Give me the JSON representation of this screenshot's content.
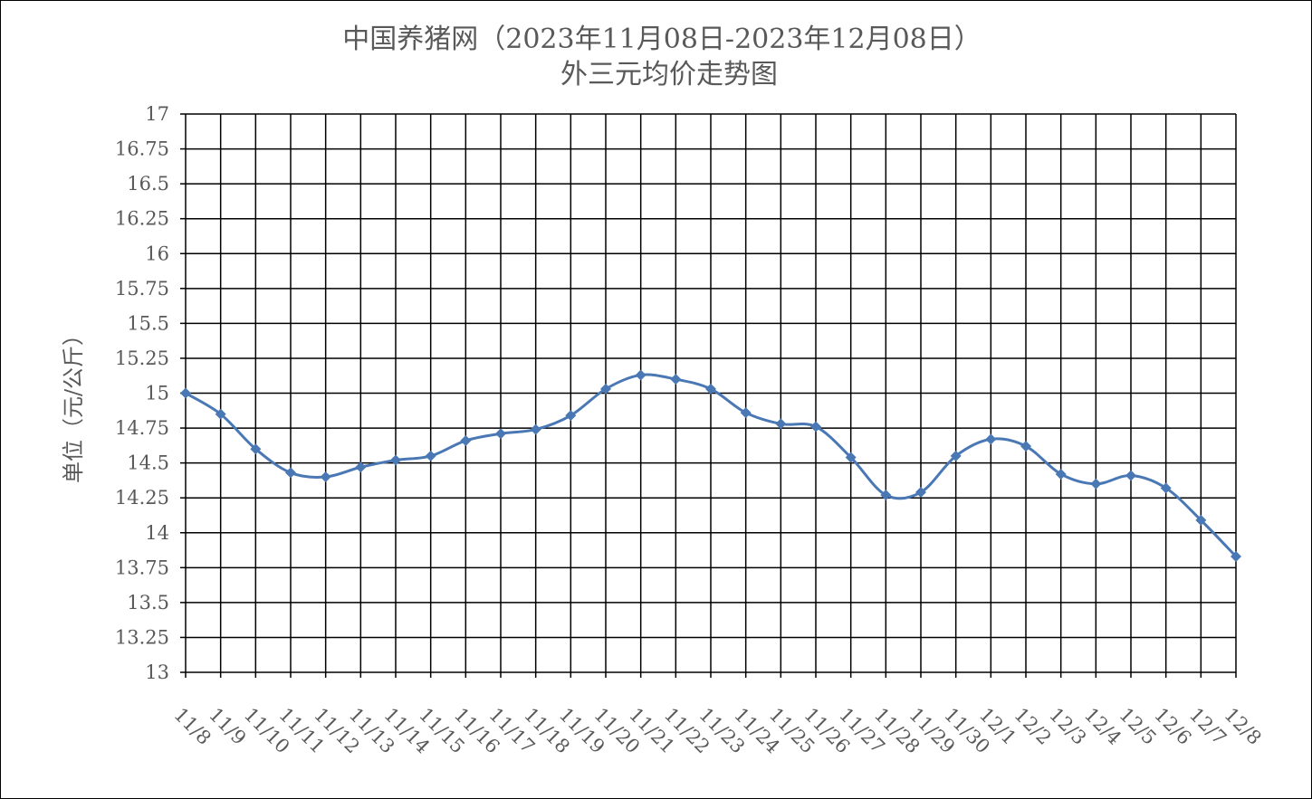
{
  "chart_data": {
    "type": "line",
    "title": "中国养猪网（2023年11月08日-2023年12月08日）",
    "subtitle": "外三元均价走势图",
    "xlabel": "",
    "ylabel": "单位（元/公斤）",
    "ylim": [
      13,
      17
    ],
    "ytick_step": 0.25,
    "yticks": [
      "13",
      "13.25",
      "13.5",
      "13.75",
      "14",
      "14.25",
      "14.5",
      "14.75",
      "15",
      "15.25",
      "15.5",
      "15.75",
      "16",
      "16.25",
      "16.5",
      "16.75",
      "17"
    ],
    "grid": true,
    "legend": "none",
    "smooth": true,
    "categories": [
      "11/8",
      "11/9",
      "11/10",
      "11/11",
      "11/12",
      "11/13",
      "11/14",
      "11/15",
      "11/16",
      "11/17",
      "11/18",
      "11/19",
      "11/20",
      "11/21",
      "11/22",
      "11/23",
      "11/24",
      "11/25",
      "11/26",
      "11/27",
      "11/28",
      "11/29",
      "11/30",
      "12/1",
      "12/2",
      "12/3",
      "12/4",
      "12/5",
      "12/6",
      "12/7",
      "12/8"
    ],
    "series": [
      {
        "color": "#4a78b5",
        "marker": "diamond",
        "values": [
          15.0,
          14.85,
          14.6,
          14.43,
          14.4,
          14.47,
          14.52,
          14.55,
          14.66,
          14.71,
          14.74,
          14.84,
          15.03,
          15.13,
          15.1,
          15.03,
          14.86,
          14.78,
          14.76,
          14.54,
          14.27,
          14.29,
          14.55,
          14.67,
          14.62,
          14.42,
          14.35,
          14.41,
          14.32,
          14.09,
          13.83
        ]
      }
    ]
  }
}
